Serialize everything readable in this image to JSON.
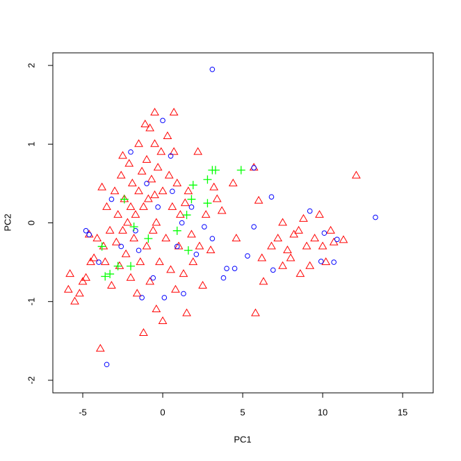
{
  "chart_data": {
    "type": "scatter",
    "xlabel": "PC1",
    "ylabel": "PC2",
    "xlim": [
      -6.87,
      16.91
    ],
    "ylim": [
      -2.16,
      2.16
    ],
    "xticks": [
      -5,
      0,
      5,
      10,
      15
    ],
    "yticks": [
      -2,
      -1,
      0,
      1,
      2
    ],
    "series": [
      {
        "color": "#ff0000",
        "marker": "triangle",
        "x": [
          -5.8,
          -5.5,
          -5.9,
          -5.2,
          -4.8,
          -4.6,
          -4.3,
          -4.1,
          -3.9,
          -3.8,
          -3.7,
          -3.6,
          -3.5,
          -3.3,
          -3.2,
          -3.0,
          -2.9,
          -2.8,
          -2.7,
          -2.6,
          -2.5,
          -2.5,
          -2.4,
          -2.3,
          -2.2,
          -2.1,
          -2.0,
          -2.0,
          -1.9,
          -1.8,
          -1.7,
          -1.6,
          -1.5,
          -1.5,
          -1.4,
          -1.3,
          -1.2,
          -1.2,
          -1.1,
          -1.0,
          -1.0,
          -0.9,
          -0.8,
          -0.8,
          -0.7,
          -0.6,
          -0.5,
          -0.5,
          -0.4,
          -0.4,
          -0.3,
          -0.2,
          -0.1,
          0.0,
          0.0,
          0.2,
          0.3,
          0.4,
          0.5,
          0.6,
          0.7,
          0.8,
          0.9,
          1.0,
          1.1,
          1.3,
          1.4,
          1.5,
          1.6,
          1.8,
          1.9,
          2.2,
          2.3,
          2.5,
          2.7,
          3.0,
          3.2,
          3.4,
          3.7,
          4.4,
          4.6,
          5.7,
          5.8,
          6.0,
          6.2,
          6.3,
          6.8,
          7.2,
          7.5,
          7.5,
          7.8,
          8.0,
          8.2,
          8.5,
          8.6,
          8.8,
          9.0,
          9.2,
          9.5,
          9.8,
          10.0,
          10.2,
          10.5,
          10.7,
          11.3,
          12.1,
          -0.5,
          0.7,
          -5.0,
          -4.5
        ],
        "y": [
          -0.65,
          -1.0,
          -0.85,
          -0.9,
          -0.7,
          -0.15,
          -0.45,
          -0.2,
          -1.6,
          0.45,
          -0.3,
          -0.5,
          0.2,
          -0.1,
          -0.8,
          0.4,
          -0.25,
          0.1,
          -0.55,
          0.6,
          0.85,
          -0.1,
          0.3,
          -0.4,
          0.0,
          0.75,
          -0.7,
          0.2,
          0.5,
          -0.2,
          0.1,
          -0.9,
          0.4,
          1.0,
          -0.5,
          0.65,
          -1.4,
          0.2,
          1.25,
          -0.3,
          0.8,
          0.3,
          -0.75,
          1.2,
          0.55,
          -0.1,
          1.0,
          0.35,
          -1.1,
          0.0,
          0.7,
          -0.5,
          0.9,
          -1.25,
          0.4,
          -0.2,
          1.1,
          0.6,
          -0.6,
          0.2,
          0.9,
          -0.85,
          0.5,
          -0.3,
          0.1,
          -0.65,
          0.25,
          -1.15,
          0.4,
          -0.15,
          -0.5,
          0.9,
          -0.3,
          -0.8,
          0.1,
          -0.35,
          0.45,
          0.3,
          0.15,
          0.5,
          -0.2,
          0.7,
          -1.15,
          0.28,
          -0.45,
          -0.75,
          -0.3,
          -0.2,
          0.0,
          -0.55,
          -0.35,
          -0.45,
          -0.15,
          -0.1,
          -0.65,
          0.05,
          -0.3,
          -0.55,
          -0.2,
          0.1,
          -0.3,
          -0.5,
          -0.1,
          -0.25,
          -0.22,
          0.6,
          1.4,
          1.4,
          -0.75,
          -0.5
        ]
      },
      {
        "color": "#0000ff",
        "marker": "circle",
        "x": [
          3.1,
          -3.5,
          13.3,
          -4.6,
          -4.0,
          -3.2,
          -2.6,
          -2.0,
          -1.7,
          -1.3,
          -1.0,
          -0.6,
          -0.3,
          0.0,
          0.1,
          0.5,
          0.9,
          1.2,
          1.3,
          1.8,
          2.1,
          2.6,
          3.1,
          3.8,
          4.0,
          4.5,
          5.3,
          5.7,
          5.7,
          6.8,
          6.9,
          9.2,
          9.9,
          10.1,
          10.7,
          10.9,
          -4.8,
          -1.5,
          0.6
        ],
        "y": [
          1.95,
          -1.8,
          0.07,
          -0.15,
          -0.5,
          0.3,
          -0.3,
          0.9,
          -0.1,
          -0.95,
          0.5,
          -0.7,
          0.2,
          1.3,
          -0.95,
          0.85,
          -0.3,
          0.0,
          -0.9,
          0.2,
          -0.4,
          -0.05,
          -0.2,
          -0.7,
          -0.58,
          -0.58,
          -0.42,
          0.7,
          -0.05,
          0.33,
          -0.6,
          0.15,
          -0.49,
          -0.13,
          -0.5,
          -0.21,
          -0.1,
          -0.35,
          0.4
        ]
      },
      {
        "color": "#00ff00",
        "marker": "plus",
        "x": [
          4.9,
          3.3,
          3.1,
          2.8,
          2.8,
          1.9,
          1.8,
          1.5,
          0.9,
          -0.9,
          -1.8,
          -2.0,
          -2.8,
          -3.3,
          -3.6,
          -3.8,
          -2.4,
          1.6
        ],
        "y": [
          0.67,
          0.67,
          0.67,
          0.25,
          0.55,
          0.48,
          0.3,
          0.1,
          -0.1,
          -0.2,
          -0.05,
          -0.55,
          -0.55,
          -0.65,
          -0.68,
          -0.3,
          0.3,
          -0.35
        ]
      }
    ]
  }
}
